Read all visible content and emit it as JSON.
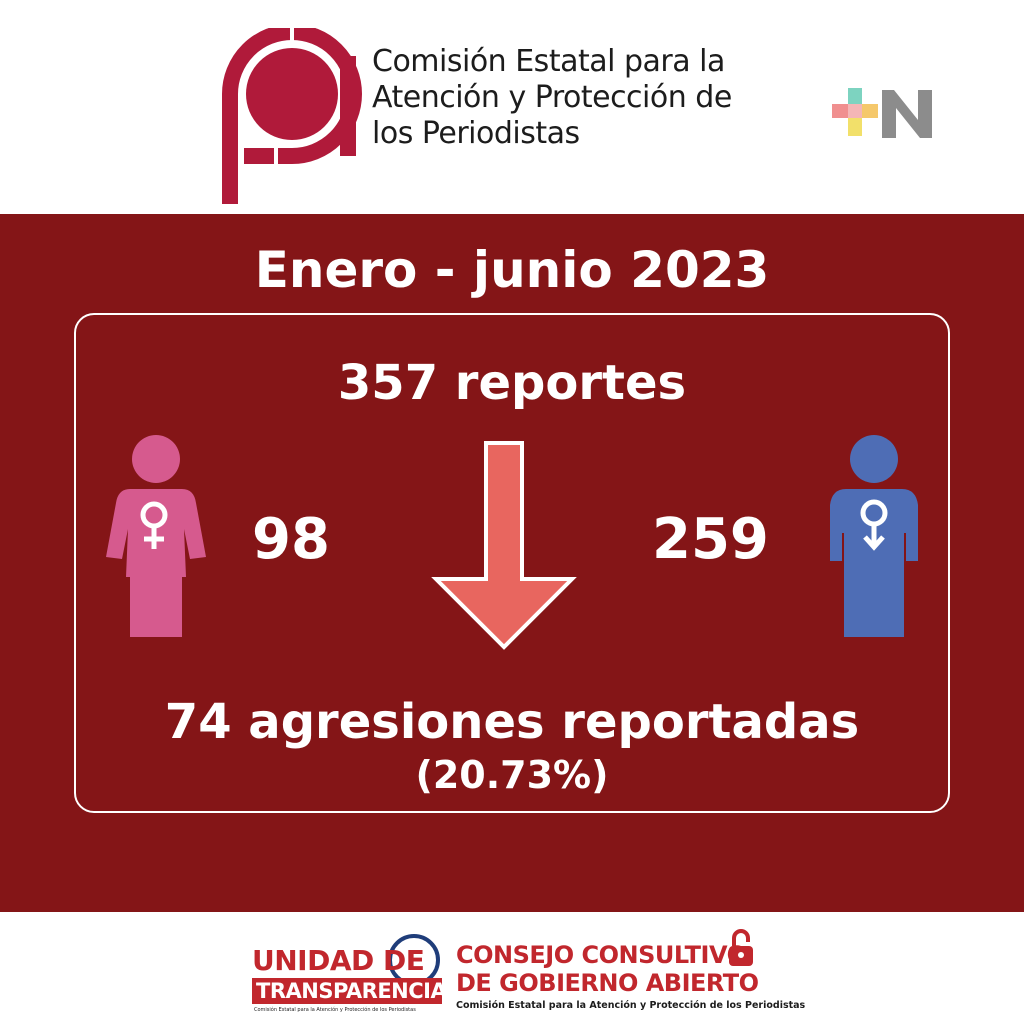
{
  "header": {
    "logo_icon": "ceapp-logo",
    "org_name_lines": [
      "Comisión Estatal para la",
      "Atención y Protección de",
      "los Periodistas"
    ],
    "partner_logo_icon": "mas-noticias-logo",
    "colors": {
      "logo_red": "#b01a3a",
      "text": "#1c1c1c"
    }
  },
  "panel": {
    "background_color": "#841517",
    "period": "Enero - junio 2023",
    "total_reports": "357 reportes",
    "women": {
      "icon": "woman-icon",
      "count": "98",
      "color": "#d65a8e"
    },
    "men": {
      "icon": "man-icon",
      "count": "259",
      "color": "#4e6db5"
    },
    "arrow_icon": "arrow-down-icon",
    "arrow_color": "#e8665f",
    "aggressions": "74 agresiones reportadas",
    "percentage": "(20.73%)"
  },
  "footer": {
    "transparency": {
      "line1": "UNIDAD DE",
      "line2": "TRANSPARENCIA",
      "subtitle": "Comisión Estatal para la Atención y Protección de los Periodistas"
    },
    "council": {
      "line1": "CONSEJO CONSULTIVO",
      "line2": "DE GOBIERNO ABIERTO",
      "subtitle": "Comisión Estatal para la Atención y Protección de los Periodistas",
      "icon": "padlock-icon"
    },
    "accent_color": "#c1272d"
  }
}
